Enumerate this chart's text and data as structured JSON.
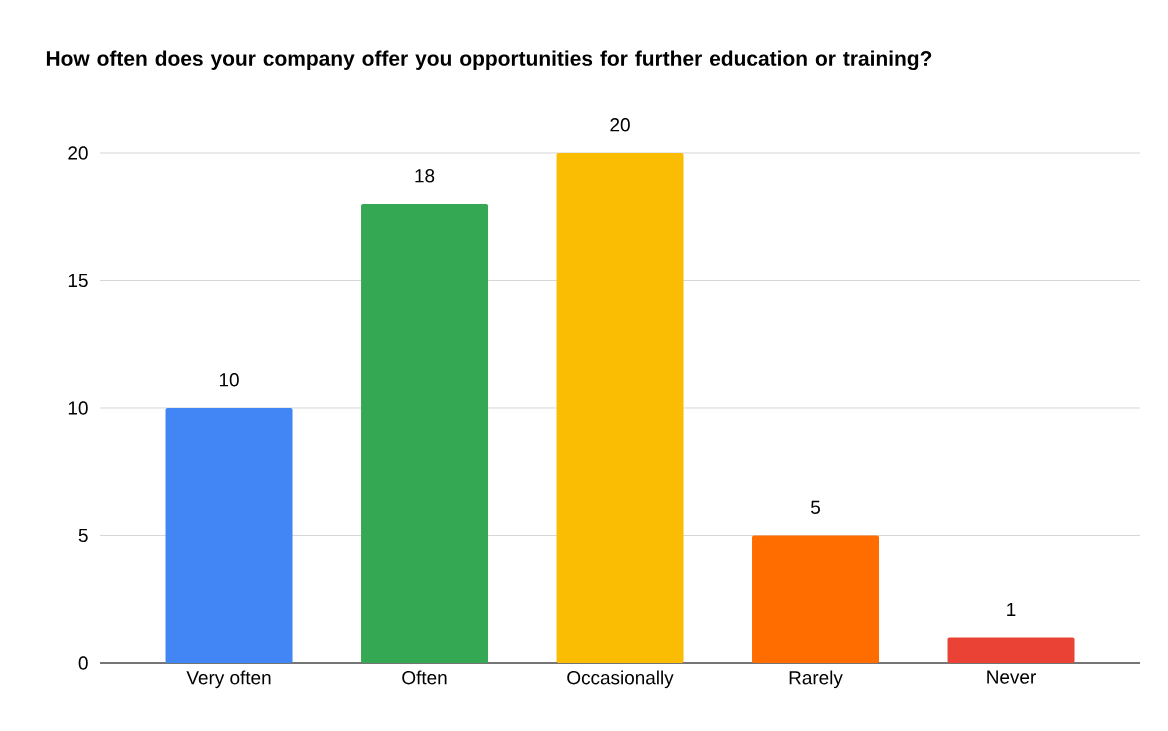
{
  "chart_data": {
    "type": "bar",
    "title": "How often does your company offer you opportunities for further education or training?",
    "categories": [
      "Very often",
      "Often",
      "Occasionally",
      "Rarely",
      "Never"
    ],
    "values": [
      10,
      18,
      20,
      5,
      1
    ],
    "colors": [
      "#4285f4",
      "#34a853",
      "#fbbc04",
      "#ff6d01",
      "#ea4335"
    ],
    "ylim": [
      0,
      20
    ],
    "yticks": [
      0,
      5,
      10,
      15,
      20
    ],
    "grid": "y",
    "data_labels": true
  }
}
